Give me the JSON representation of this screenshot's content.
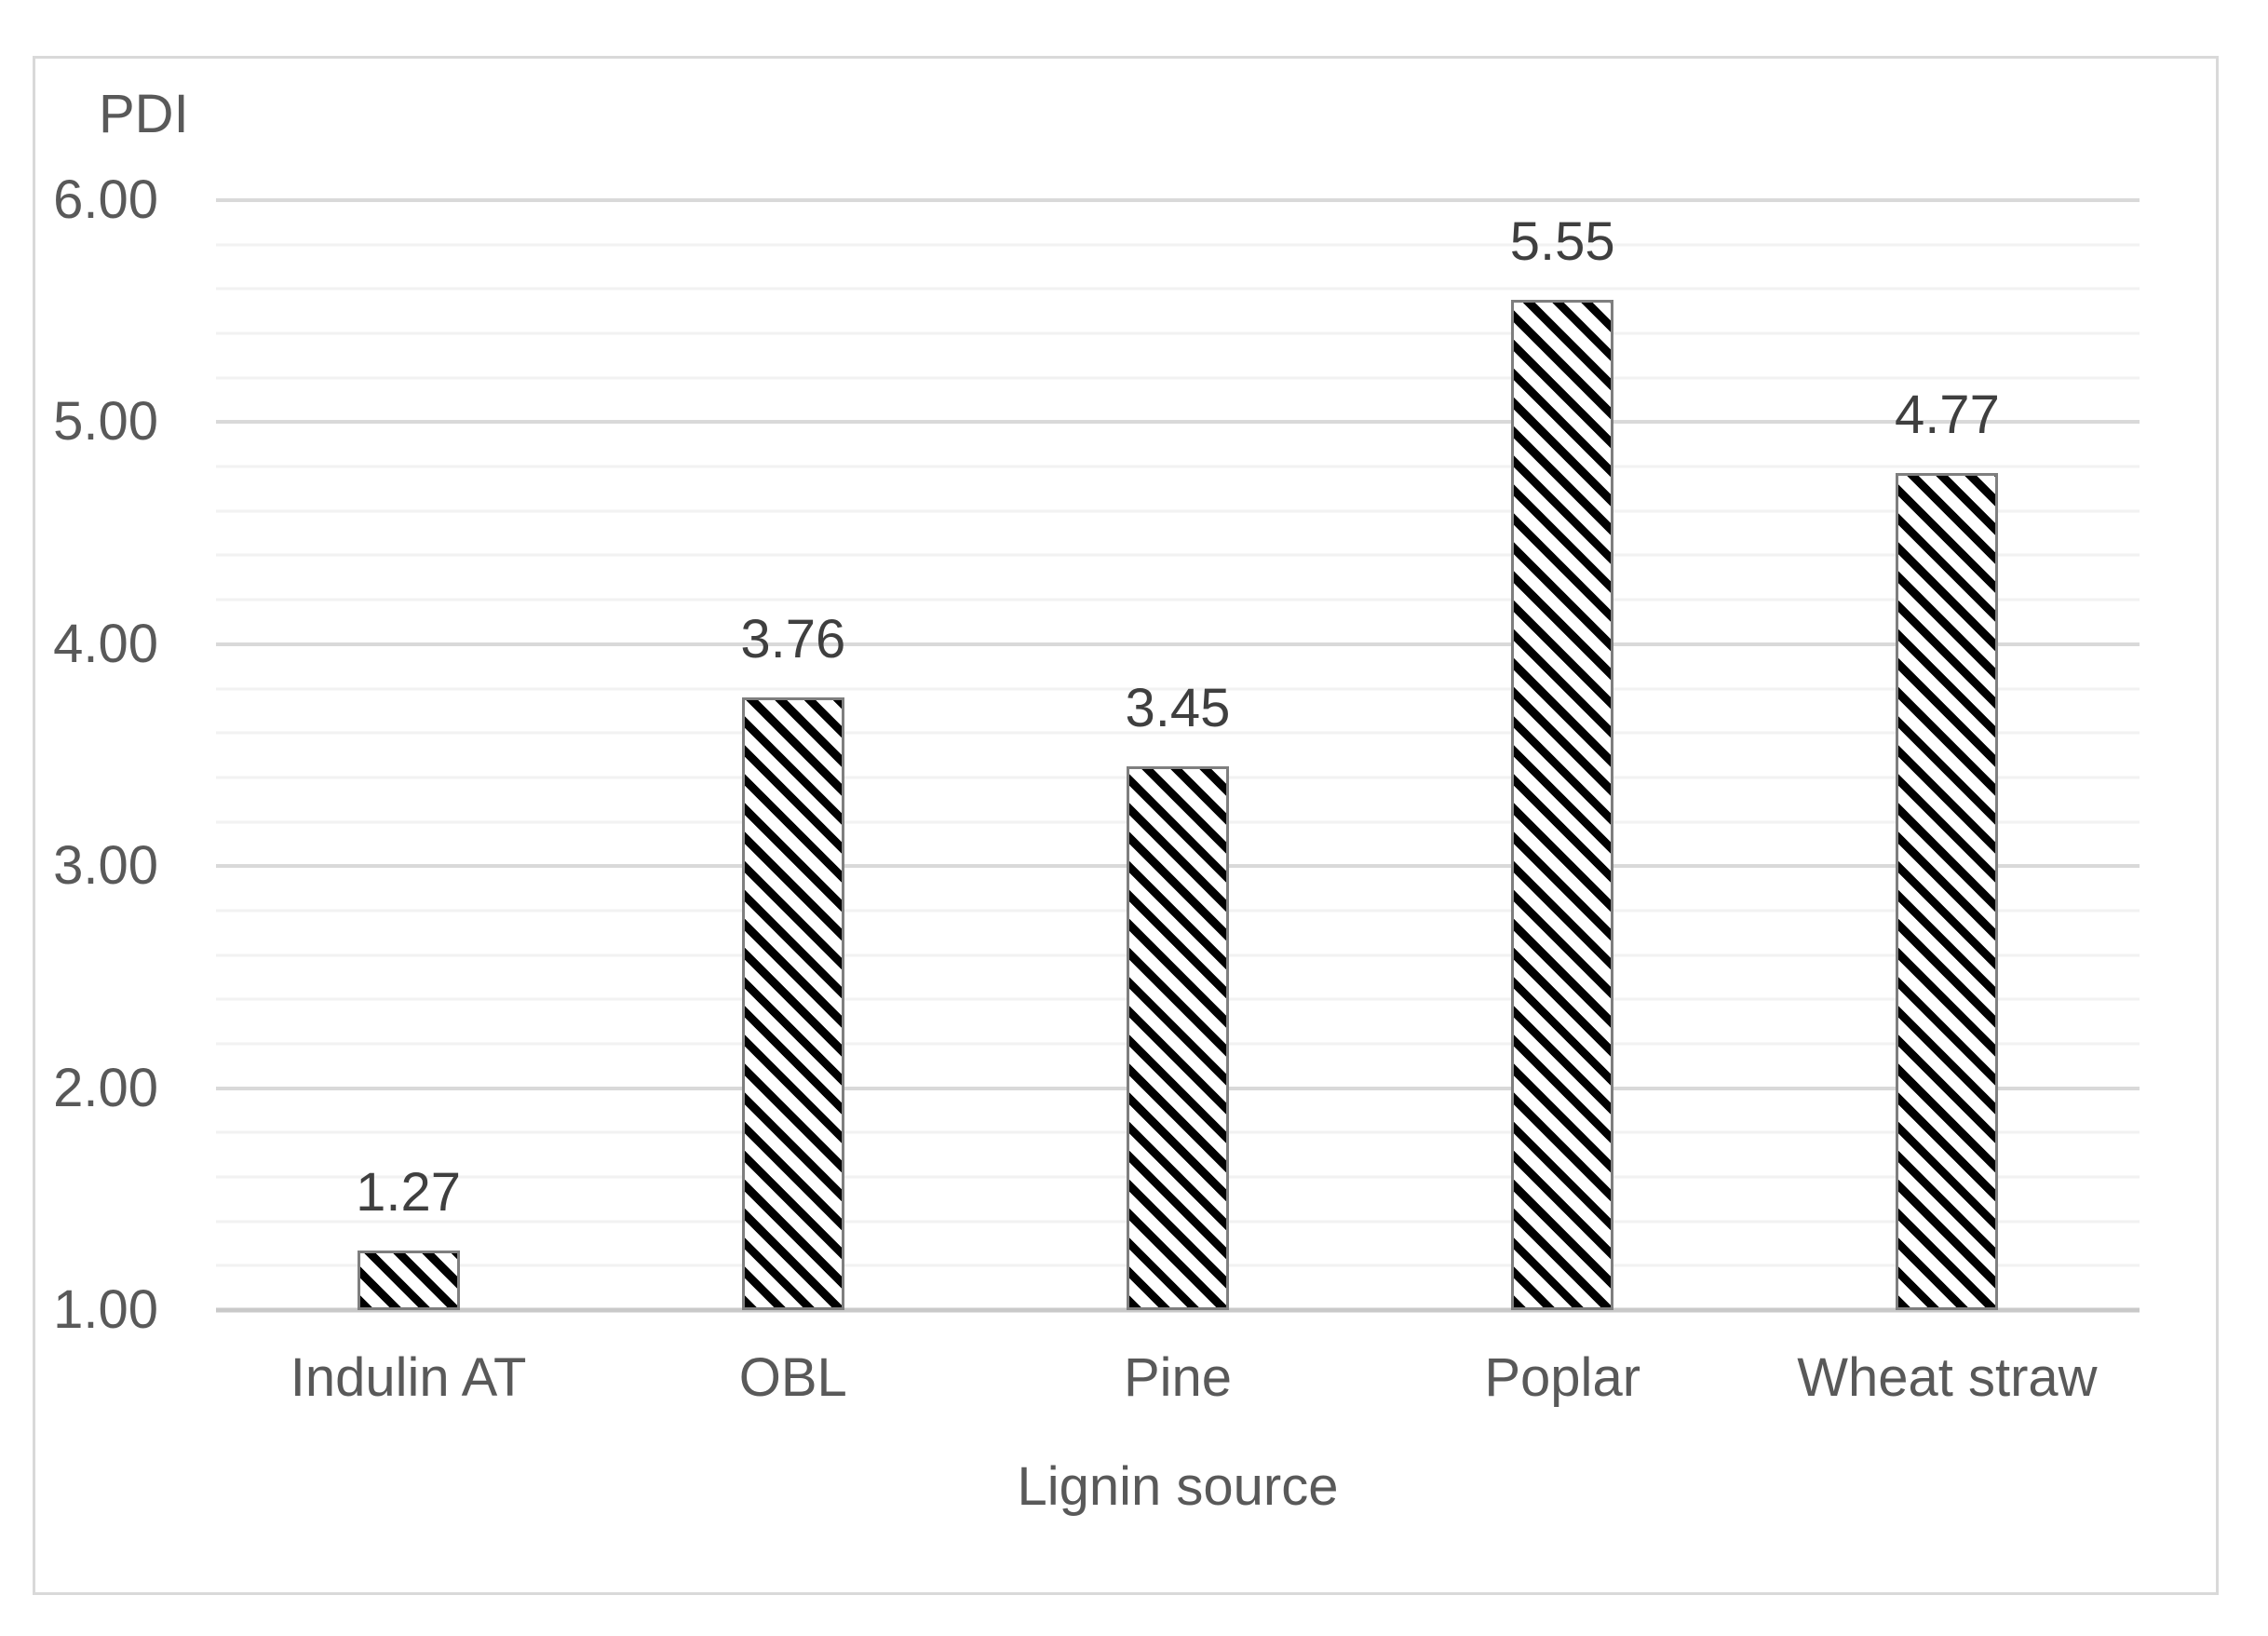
{
  "chart_data": {
    "type": "bar",
    "title": "",
    "ylabel": "PDI",
    "xlabel": "Lignin source",
    "categories": [
      "Indulin AT",
      "OBL",
      "Pine",
      "Poplar",
      "Wheat straw"
    ],
    "values": [
      1.27,
      3.76,
      3.45,
      5.55,
      4.77
    ],
    "data_labels": [
      "1.27",
      "3.76",
      "3.45",
      "5.55",
      "4.77"
    ],
    "y_axis": {
      "min": 1.0,
      "max": 6.0,
      "major_step": 1.0,
      "minor_step": 0.2,
      "tick_labels": [
        "1.00",
        "2.00",
        "3.00",
        "4.00",
        "5.00",
        "6.00"
      ]
    },
    "grid": "horizontal major and minor gridlines, on",
    "legend": "none",
    "bar_style": {
      "fill": "diagonal-hatch-backslash",
      "stripe_color": "#000000",
      "background_color": "#ffffff",
      "border_color": "#7f7f7f"
    },
    "colors": {
      "minor_grid": "#f2f2f2",
      "major_grid": "#d9d9d9",
      "axis_line": "#c9c9c9",
      "axis_text": "#595959",
      "data_label_text": "#3f3f3f",
      "chart_border": "#d9d9d9"
    }
  }
}
